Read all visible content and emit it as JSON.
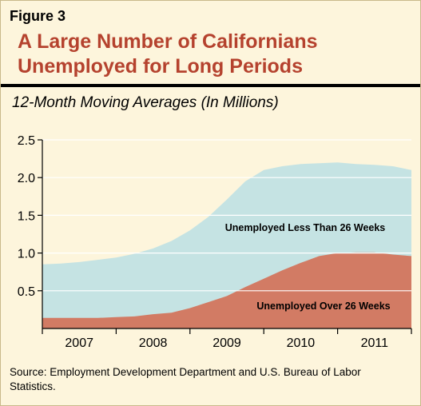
{
  "figure": {
    "label": "Figure 3",
    "title": "A Large Number of Californians Unemployed for Long Periods",
    "subtitle": "12-Month Moving Averages (In Millions)",
    "source": "Source: Employment Development Department and U.S. Bureau of Labor Statistics."
  },
  "chart_data": {
    "type": "area",
    "stacked": true,
    "x_categories": [
      "2007",
      "2008",
      "2009",
      "2010",
      "2011"
    ],
    "x_range": [
      2007.0,
      2012.0
    ],
    "ylim": [
      0,
      2.5
    ],
    "yticks": [
      "0.5",
      "1.0",
      "1.5",
      "2.0",
      "2.5"
    ],
    "ytick_values": [
      0.5,
      1.0,
      1.5,
      2.0,
      2.5
    ],
    "grid": true,
    "colors": {
      "total": "#c5e3e3",
      "long": "#d27b64",
      "grid": "#ffffff",
      "axis": "#000000"
    },
    "series": [
      {
        "name": "Unemployed Over 26 Weeks",
        "x": [
          2007.0,
          2007.25,
          2007.5,
          2007.75,
          2008.0,
          2008.25,
          2008.5,
          2008.75,
          2009.0,
          2009.25,
          2009.5,
          2009.75,
          2010.0,
          2010.25,
          2010.5,
          2010.75,
          2011.0,
          2011.25,
          2011.5,
          2011.75,
          2012.0
        ],
        "values": [
          0.14,
          0.14,
          0.14,
          0.14,
          0.15,
          0.16,
          0.19,
          0.21,
          0.27,
          0.35,
          0.43,
          0.55,
          0.66,
          0.77,
          0.87,
          0.96,
          1.0,
          1.01,
          1.01,
          0.98,
          0.96
        ]
      },
      {
        "name": "Unemployed Less Than 26 Weeks",
        "x": [
          2007.0,
          2007.25,
          2007.5,
          2007.75,
          2008.0,
          2008.25,
          2008.5,
          2008.75,
          2009.0,
          2009.25,
          2009.5,
          2009.75,
          2010.0,
          2010.25,
          2010.5,
          2010.75,
          2011.0,
          2011.25,
          2011.5,
          2011.75,
          2012.0
        ],
        "values": [
          0.71,
          0.72,
          0.74,
          0.77,
          0.79,
          0.83,
          0.87,
          0.95,
          1.03,
          1.13,
          1.28,
          1.4,
          1.44,
          1.38,
          1.31,
          1.23,
          1.2,
          1.17,
          1.16,
          1.17,
          1.14
        ]
      }
    ],
    "annotations": [
      "Unemployed Less Than 26 Weeks",
      "Unemployed Over 26 Weeks"
    ]
  }
}
